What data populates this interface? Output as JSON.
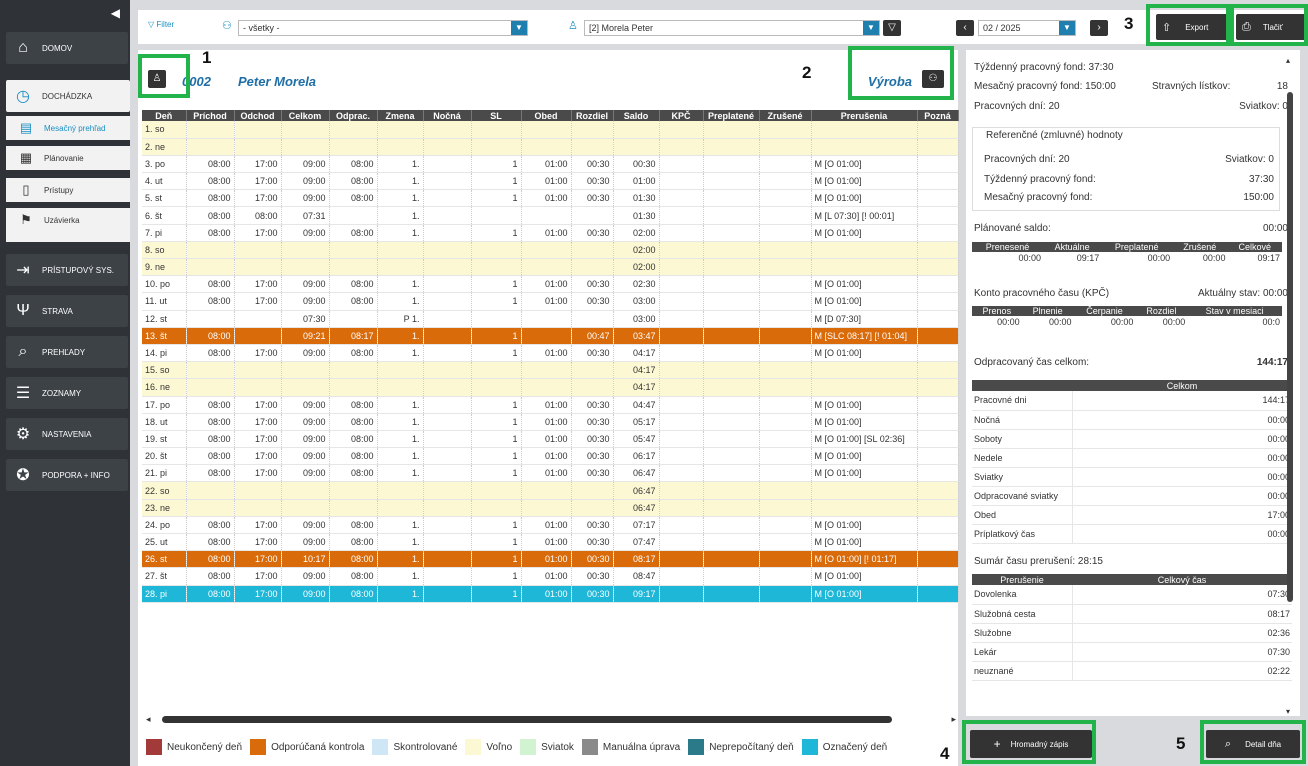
{
  "sidebar": {
    "collapse": "◀",
    "items": [
      {
        "label": "DOMOV",
        "icon": "home-icon"
      },
      {
        "label": "DOCHÁDZKA",
        "icon": "clock-icon"
      },
      {
        "label": "PRÍSTUPOVÝ SYS.",
        "icon": "login-icon"
      },
      {
        "label": "STRAVA",
        "icon": "cutlery-icon"
      },
      {
        "label": "PREHĽADY",
        "icon": "search-icon"
      },
      {
        "label": "ZOZNAMY",
        "icon": "list-icon"
      },
      {
        "label": "NASTAVENIA",
        "icon": "gear-icon"
      },
      {
        "label": "PODPORA + INFO",
        "icon": "lifebuoy-icon"
      }
    ],
    "subitems": [
      "Mesačný prehľad",
      "Plánovanie",
      "Prístupy",
      "Uzávierka"
    ]
  },
  "toolbar": {
    "filter": "Filter",
    "group_value": "- všetky -",
    "person_value": "[2] Morela Peter",
    "month": "02 / 2025",
    "export": "Export",
    "print": "Tlačiť"
  },
  "markers": [
    "1",
    "2",
    "3",
    "4",
    "5"
  ],
  "employee": {
    "id": "0002",
    "name": "Peter Morela",
    "dept": "Výroba"
  },
  "table": {
    "headers": [
      "Deň",
      "Príchod",
      "Odchod",
      "Celkom",
      "Odprac.",
      "Zmena",
      "Nočná",
      "SL",
      "Obed",
      "Rozdiel",
      "Saldo",
      "KPČ",
      "Preplatené",
      "Zrušené",
      "Prerušenia",
      "Pozná"
    ],
    "rows": [
      {
        "t": "we",
        "c": [
          "1. so",
          "",
          "",
          "",
          "",
          "",
          "",
          "",
          "",
          "",
          "",
          "",
          "",
          "",
          "",
          ""
        ]
      },
      {
        "t": "we",
        "c": [
          "2. ne",
          "",
          "",
          "",
          "",
          "",
          "",
          "",
          "",
          "",
          "",
          "",
          "",
          "",
          "",
          ""
        ]
      },
      {
        "t": "",
        "c": [
          "3. po",
          "08:00",
          "17:00",
          "09:00",
          "08:00",
          "1.",
          "",
          "1",
          "01:00",
          "00:30",
          "00:30",
          "",
          "",
          "",
          "M [O 01:00]",
          ""
        ]
      },
      {
        "t": "",
        "c": [
          "4. ut",
          "08:00",
          "17:00",
          "09:00",
          "08:00",
          "1.",
          "",
          "1",
          "01:00",
          "00:30",
          "01:00",
          "",
          "",
          "",
          "M [O 01:00]",
          ""
        ]
      },
      {
        "t": "",
        "c": [
          "5. st",
          "08:00",
          "17:00",
          "09:00",
          "08:00",
          "1.",
          "",
          "1",
          "01:00",
          "00:30",
          "01:30",
          "",
          "",
          "",
          "M [O 01:00]",
          ""
        ]
      },
      {
        "t": "",
        "c": [
          "6. št",
          "08:00",
          "08:00",
          "07:31",
          "",
          "1.",
          "",
          "",
          "",
          "",
          "01:30",
          "",
          "",
          "",
          "M [L 07:30] [! 00:01]",
          ""
        ]
      },
      {
        "t": "",
        "c": [
          "7. pi",
          "08:00",
          "17:00",
          "09:00",
          "08:00",
          "1.",
          "",
          "1",
          "01:00",
          "00:30",
          "02:00",
          "",
          "",
          "",
          "M [O 01:00]",
          ""
        ]
      },
      {
        "t": "we",
        "c": [
          "8. so",
          "",
          "",
          "",
          "",
          "",
          "",
          "",
          "",
          "",
          "02:00",
          "",
          "",
          "",
          "",
          ""
        ]
      },
      {
        "t": "we",
        "c": [
          "9. ne",
          "",
          "",
          "",
          "",
          "",
          "",
          "",
          "",
          "",
          "02:00",
          "",
          "",
          "",
          "",
          ""
        ]
      },
      {
        "t": "",
        "c": [
          "10. po",
          "08:00",
          "17:00",
          "09:00",
          "08:00",
          "1.",
          "",
          "1",
          "01:00",
          "00:30",
          "02:30",
          "",
          "",
          "",
          "M [O 01:00]",
          ""
        ]
      },
      {
        "t": "",
        "c": [
          "11. ut",
          "08:00",
          "17:00",
          "09:00",
          "08:00",
          "1.",
          "",
          "1",
          "01:00",
          "00:30",
          "03:00",
          "",
          "",
          "",
          "M [O 01:00]",
          ""
        ]
      },
      {
        "t": "",
        "c": [
          "12. st",
          "",
          "",
          "07:30",
          "",
          "P 1.",
          "",
          "",
          "",
          "",
          "03:00",
          "",
          "",
          "",
          "M [D 07:30]",
          ""
        ]
      },
      {
        "t": "or",
        "c": [
          "13. št",
          "08:00",
          "",
          "09:21",
          "08:17",
          "1.",
          "",
          "1",
          "",
          "00:47",
          "03:47",
          "",
          "",
          "",
          "M [SLC 08:17] [! 01:04]",
          ""
        ]
      },
      {
        "t": "",
        "c": [
          "14. pi",
          "08:00",
          "17:00",
          "09:00",
          "08:00",
          "1.",
          "",
          "1",
          "01:00",
          "00:30",
          "04:17",
          "",
          "",
          "",
          "M [O 01:00]",
          ""
        ]
      },
      {
        "t": "we",
        "c": [
          "15. so",
          "",
          "",
          "",
          "",
          "",
          "",
          "",
          "",
          "",
          "04:17",
          "",
          "",
          "",
          "",
          ""
        ]
      },
      {
        "t": "we",
        "c": [
          "16. ne",
          "",
          "",
          "",
          "",
          "",
          "",
          "",
          "",
          "",
          "04:17",
          "",
          "",
          "",
          "",
          ""
        ]
      },
      {
        "t": "",
        "c": [
          "17. po",
          "08:00",
          "17:00",
          "09:00",
          "08:00",
          "1.",
          "",
          "1",
          "01:00",
          "00:30",
          "04:47",
          "",
          "",
          "",
          "M [O 01:00]",
          ""
        ]
      },
      {
        "t": "",
        "c": [
          "18. ut",
          "08:00",
          "17:00",
          "09:00",
          "08:00",
          "1.",
          "",
          "1",
          "01:00",
          "00:30",
          "05:17",
          "",
          "",
          "",
          "M [O 01:00]",
          ""
        ]
      },
      {
        "t": "",
        "c": [
          "19. st",
          "08:00",
          "17:00",
          "09:00",
          "08:00",
          "1.",
          "",
          "1",
          "01:00",
          "00:30",
          "05:47",
          "",
          "",
          "",
          "M [O 01:00] [SL 02:36]",
          ""
        ]
      },
      {
        "t": "",
        "c": [
          "20. št",
          "08:00",
          "17:00",
          "09:00",
          "08:00",
          "1.",
          "",
          "1",
          "01:00",
          "00:30",
          "06:17",
          "",
          "",
          "",
          "M [O 01:00]",
          ""
        ]
      },
      {
        "t": "",
        "c": [
          "21. pi",
          "08:00",
          "17:00",
          "09:00",
          "08:00",
          "1.",
          "",
          "1",
          "01:00",
          "00:30",
          "06:47",
          "",
          "",
          "",
          "M [O 01:00]",
          ""
        ]
      },
      {
        "t": "we",
        "c": [
          "22. so",
          "",
          "",
          "",
          "",
          "",
          "",
          "",
          "",
          "",
          "06:47",
          "",
          "",
          "",
          "",
          ""
        ]
      },
      {
        "t": "we",
        "c": [
          "23. ne",
          "",
          "",
          "",
          "",
          "",
          "",
          "",
          "",
          "",
          "06:47",
          "",
          "",
          "",
          "",
          ""
        ]
      },
      {
        "t": "",
        "c": [
          "24. po",
          "08:00",
          "17:00",
          "09:00",
          "08:00",
          "1.",
          "",
          "1",
          "01:00",
          "00:30",
          "07:17",
          "",
          "",
          "",
          "M [O 01:00]",
          ""
        ]
      },
      {
        "t": "",
        "c": [
          "25. ut",
          "08:00",
          "17:00",
          "09:00",
          "08:00",
          "1.",
          "",
          "1",
          "01:00",
          "00:30",
          "07:47",
          "",
          "",
          "",
          "M [O 01:00]",
          ""
        ]
      },
      {
        "t": "or",
        "c": [
          "26. st",
          "08:00",
          "17:00",
          "10:17",
          "08:00",
          "1.",
          "",
          "1",
          "01:00",
          "00:30",
          "08:17",
          "",
          "",
          "",
          "M [O 01:00] [! 01:17]",
          ""
        ]
      },
      {
        "t": "",
        "c": [
          "27. št",
          "08:00",
          "17:00",
          "09:00",
          "08:00",
          "1.",
          "",
          "1",
          "01:00",
          "00:30",
          "08:47",
          "",
          "",
          "",
          "M [O 01:00]",
          ""
        ]
      },
      {
        "t": "cy",
        "c": [
          "28. pi",
          "08:00",
          "17:00",
          "09:00",
          "08:00",
          "1.",
          "",
          "1",
          "01:00",
          "00:30",
          "09:17",
          "",
          "",
          "",
          "M [O 01:00]",
          ""
        ]
      }
    ]
  },
  "legend": [
    {
      "label": "Neukončený deň",
      "color": "#a23a3a"
    },
    {
      "label": "Odporúčaná kontrola",
      "color": "#d96b0a"
    },
    {
      "label": "Skontrolované",
      "color": "#cfe6f6"
    },
    {
      "label": "Voľno",
      "color": "#fdf8d4"
    },
    {
      "label": "Sviatok",
      "color": "#d2f3d2"
    },
    {
      "label": "Manuálna úprava",
      "color": "#8a8a8a"
    },
    {
      "label": "Neprepočítaný deň",
      "color": "#2b7a8a"
    },
    {
      "label": "Označený deň",
      "color": "#1fb7d8"
    }
  ],
  "summary": {
    "weekly_fund_label": "Týždenný pracovný fond:",
    "weekly_fund": "37:30",
    "monthly_fund_label": "Mesačný pracovný fond:",
    "monthly_fund": "150:00",
    "meal_label": "Stravných lístkov:",
    "meal": "18",
    "workdays_label": "Pracovných dní: 20",
    "holidays_label": "Sviatkov: 0",
    "ref_title": "Referenčné (zmluvné) hodnoty",
    "ref_workdays": "Pracovných dní: 20",
    "ref_holidays": "Sviatkov: 0",
    "ref_weekly_label": "Týždenný pracovný fond:",
    "ref_weekly": "37:30",
    "ref_monthly_label": "Mesačný pracovný fond:",
    "ref_monthly": "150:00",
    "planned_label": "Plánované saldo:",
    "planned": "00:00",
    "saldo_headers": [
      "Prenesené",
      "Aktuálne",
      "Preplatené",
      "Zrušené",
      "Celkové"
    ],
    "saldo_values": [
      "00:00",
      "09:17",
      "00:00",
      "00:00",
      "09:17"
    ],
    "kpc_label": "Konto pracovného času (KPČ)",
    "kpc_state": "Aktuálny stav: 00:00",
    "kpc_headers": [
      "Prenos",
      "Plnenie",
      "Čerpanie",
      "Rozdiel",
      "Stav v mesiaci"
    ],
    "kpc_values": [
      "00:00",
      "00:00",
      "00:00",
      "00:00",
      "00:0"
    ],
    "worked_label": "Odpracovaný čas celkom:",
    "worked": "144:17",
    "worked_header": "Celkom",
    "worked_rows": [
      [
        "Pracovné dni",
        "144:17"
      ],
      [
        "Nočná",
        "00:00"
      ],
      [
        "Soboty",
        "00:00"
      ],
      [
        "Nedele",
        "00:00"
      ],
      [
        "Sviatky",
        "00:00"
      ],
      [
        "Odpracované sviatky",
        "00:00"
      ],
      [
        "Obed",
        "17:00"
      ],
      [
        "Príplatkový čas",
        "00:00"
      ]
    ],
    "interrupt_label": "Sumár času prerušení: 28:15",
    "interrupt_headers": [
      "Prerušenie",
      "Celkový čas"
    ],
    "interrupt_rows": [
      [
        "Dovolenka",
        "07:30"
      ],
      [
        "Služobná cesta",
        "08:17"
      ],
      [
        "Služobne",
        "02:36"
      ],
      [
        "Lekár",
        "07:30"
      ],
      [
        "neuznané",
        "02:22"
      ]
    ]
  },
  "bottom": {
    "bulk": "Hromadný zápis",
    "detail": "Detail dňa"
  }
}
